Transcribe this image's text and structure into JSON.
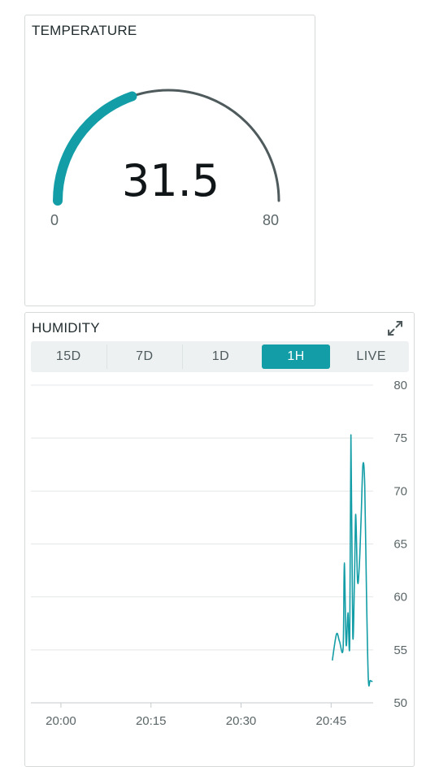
{
  "temperature": {
    "title": "TEMPERATURE",
    "value": "31.5",
    "min_label": "0",
    "max_label": "80",
    "min": 0,
    "max": 80,
    "level": 31.5,
    "fill_color": "#139da6",
    "track_color": "#4e5a5c"
  },
  "humidity": {
    "title": "HUMIDITY",
    "expand_icon": "expand-arrows-icon",
    "tabs": [
      {
        "label": "15D",
        "active": false
      },
      {
        "label": "7D",
        "active": false
      },
      {
        "label": "1D",
        "active": false
      },
      {
        "label": "1H",
        "active": true
      },
      {
        "label": "LIVE",
        "active": false
      }
    ]
  },
  "chart_data": {
    "type": "line",
    "title": "",
    "xlabel": "",
    "ylabel": "",
    "x_ticks": [
      "20:00",
      "20:15",
      "20:30",
      "20:45"
    ],
    "x_tick_minutes": [
      0,
      15,
      30,
      45
    ],
    "xlim": [
      -5,
      52
    ],
    "y_ticks": [
      80,
      75,
      70,
      65,
      60,
      55,
      50
    ],
    "ylim": [
      50,
      80
    ],
    "grid": true,
    "line_color": "#139da6",
    "series": [
      {
        "x": [
          45.2,
          45.9,
          46.4,
          47.0,
          47.2,
          47.5,
          47.8,
          48.1,
          48.3,
          48.6,
          48.9,
          49.1,
          49.4,
          49.7,
          50.0,
          50.3,
          50.6,
          50.9,
          51.2,
          51.5,
          51.9
        ],
        "y": [
          54.0,
          56.5,
          55.8,
          55.2,
          63.2,
          55.5,
          58.5,
          55.7,
          75.3,
          56.5,
          62.0,
          67.8,
          61.5,
          63.0,
          67.5,
          72.5,
          70.5,
          60.0,
          52.2,
          52.1,
          52.0
        ]
      }
    ]
  }
}
